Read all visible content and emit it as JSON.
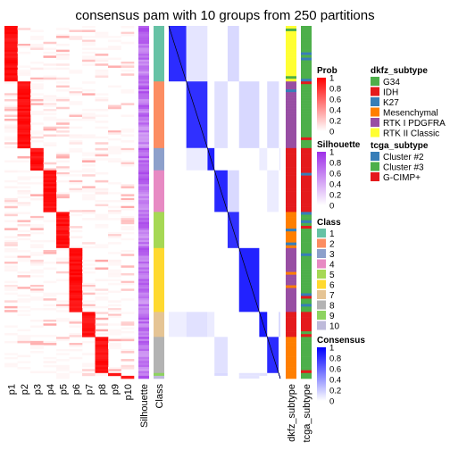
{
  "title": "consensus pam with 10 groups from 250 partitions",
  "chart_data": {
    "type": "heatmap",
    "row_blocks": [
      {
        "class": "1",
        "rows": 20
      },
      {
        "class": "2",
        "rows": 24
      },
      {
        "class": "3",
        "rows": 8
      },
      {
        "class": "4",
        "rows": 15
      },
      {
        "class": "5",
        "rows": 13
      },
      {
        "class": "6",
        "rows": 23
      },
      {
        "class": "7",
        "rows": 9
      },
      {
        "class": "8",
        "rows": 13
      },
      {
        "class": "9",
        "rows": 1
      },
      {
        "class": "10",
        "rows": 1
      }
    ],
    "columns": [
      "p1",
      "p2",
      "p3",
      "p4",
      "p5",
      "p6",
      "p7",
      "p8",
      "p9",
      "p10",
      "Silhouette",
      "Class",
      "dkfz_subtype",
      "tcga_subtype"
    ],
    "heatmap_labels": [
      "p1",
      "p2",
      "p3",
      "p4",
      "p5",
      "p6",
      "p7",
      "p8",
      "p9",
      "p10"
    ],
    "annotation_labels": [
      "Silhouette",
      "Class"
    ],
    "right_annotation_labels": [
      "dkfz_subtype",
      "tcga_subtype"
    ],
    "legends": [
      {
        "title": "Prob",
        "type": "gradient",
        "ticks": [
          "1",
          "0.8",
          "0.6",
          "0.4",
          "0.2",
          "0"
        ],
        "colors": [
          "#ff0000",
          "#ffffff"
        ]
      },
      {
        "title": "Silhouette",
        "type": "gradient",
        "ticks": [
          "1",
          "0.8",
          "0.6",
          "0.4",
          "0.2",
          "0"
        ],
        "colors": [
          "#9e2fe8",
          "#ffffff"
        ]
      },
      {
        "title": "Class",
        "type": "discrete",
        "items": [
          {
            "label": "1",
            "color": "#66c2a5"
          },
          {
            "label": "2",
            "color": "#fc8d62"
          },
          {
            "label": "3",
            "color": "#8da0cb"
          },
          {
            "label": "4",
            "color": "#e78ac3"
          },
          {
            "label": "5",
            "color": "#a6d854"
          },
          {
            "label": "6",
            "color": "#ffd92f"
          },
          {
            "label": "7",
            "color": "#e5c494"
          },
          {
            "label": "8",
            "color": "#b3b3b3"
          },
          {
            "label": "9",
            "color": "#8dd35f"
          },
          {
            "label": "10",
            "color": "#bebada"
          }
        ]
      },
      {
        "title": "Consensus",
        "type": "gradient",
        "ticks": [
          "1",
          "0.8",
          "0.6",
          "0.4",
          "0.2",
          "0"
        ],
        "colors": [
          "#0000ff",
          "#ffffff"
        ]
      },
      {
        "title": "dkfz_subtype",
        "type": "discrete",
        "items": [
          {
            "label": "G34",
            "color": "#4daf4a"
          },
          {
            "label": "IDH",
            "color": "#e41a1c"
          },
          {
            "label": "K27",
            "color": "#377eb8"
          },
          {
            "label": "Mesenchymal",
            "color": "#ff7f00"
          },
          {
            "label": "RTK I PDGFRA",
            "color": "#984ea3"
          },
          {
            "label": "RTK II Classic",
            "color": "#ffff33"
          }
        ]
      },
      {
        "title": "tcga_subtype",
        "type": "discrete",
        "items": [
          {
            "label": "Cluster #2",
            "color": "#377eb8"
          },
          {
            "label": "Cluster #3",
            "color": "#4daf4a"
          },
          {
            "label": "G-CIMP+",
            "color": "#e41a1c"
          }
        ]
      }
    ]
  }
}
